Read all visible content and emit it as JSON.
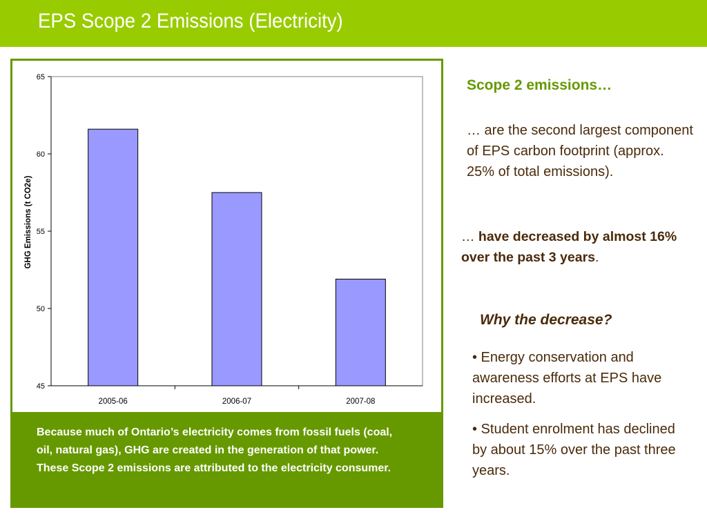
{
  "title": "EPS Scope 2 Emissions (Electricity)",
  "chart_data": {
    "type": "bar",
    "categories": [
      "2005-06",
      "2006-07",
      "2007-08"
    ],
    "values": [
      61.6,
      57.5,
      51.9
    ],
    "title": "",
    "xlabel": "",
    "ylabel": "GHG Emissions (t CO2e)",
    "ylim": [
      45,
      65
    ],
    "yticks": [
      "65",
      "60",
      "55",
      "50",
      "45"
    ],
    "grid": false,
    "legend": "none",
    "bar_color": "#9999ff",
    "bar_outline": "#000000"
  },
  "caption": "Because much of Ontario’s electricity comes from fossil fuels (coal, oil, natural gas), GHG are created in the generation of that power. These Scope 2 emissions are attributed to the electricity consumer.",
  "sidebar": {
    "heading": "Scope 2 emissions…",
    "point1": "… are the second largest component of EPS carbon footprint (approx. 25% of total emissions).",
    "point2_prefix": "… ",
    "point2_bold": "have decreased by almost 16% over the past 3 years",
    "point2_suffix": ".",
    "why_heading": "Why the decrease?",
    "bullets": [
      "• Energy conservation and awareness efforts at EPS have increased.",
      "• Student enrolment has declined by about 15% over the past three years."
    ]
  },
  "colors": {
    "title_bar": "#99cc00",
    "frame_green": "#669900",
    "text_brown": "#4a2a0a"
  }
}
